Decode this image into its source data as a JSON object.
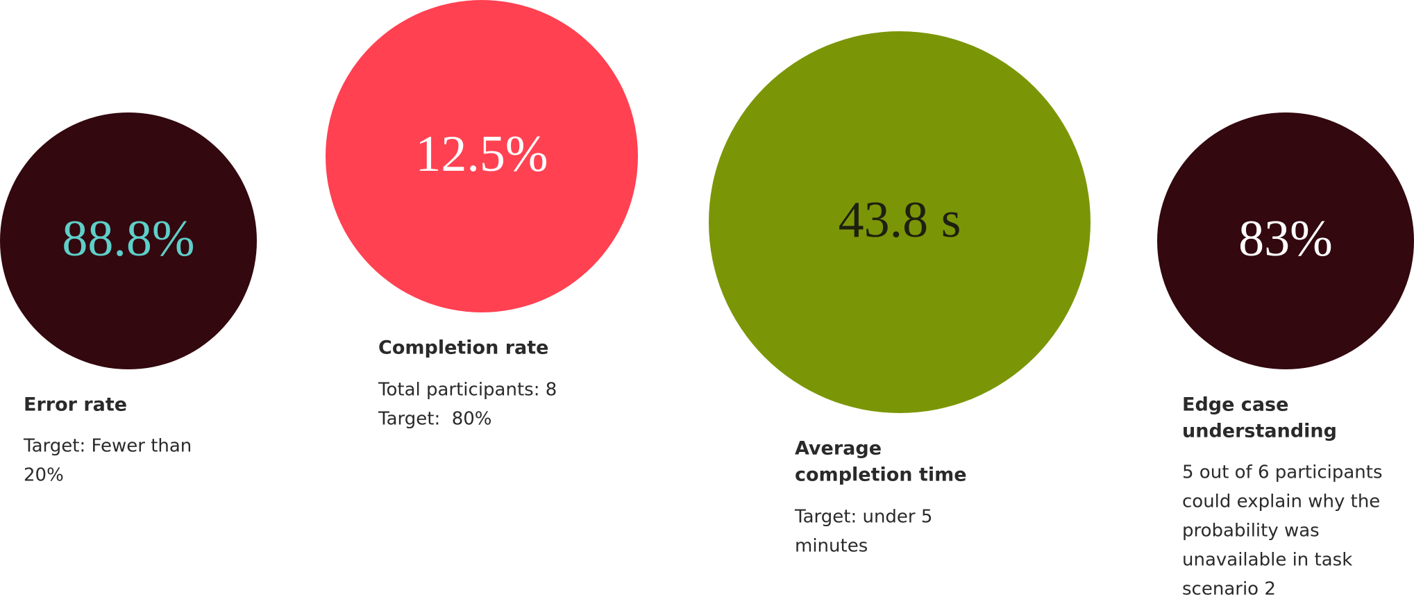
{
  "metrics": [
    {
      "value": "88.8%",
      "title": [
        "Error rate"
      ],
      "body": [
        "Target: Fewer than",
        "20%"
      ]
    },
    {
      "value": "12.5%",
      "title": [
        "Completion rate"
      ],
      "body": [
        "Total participants: 8",
        "Target:  80%"
      ]
    },
    {
      "value": "43.8 s",
      "title": [
        "Average",
        "completion time"
      ],
      "body": [
        "Target: under 5",
        "minutes"
      ]
    },
    {
      "value": "83%",
      "title": [
        "Edge case",
        "understanding"
      ],
      "body": [
        "5 out of 6 participants",
        "could explain why the",
        "probability was",
        "unavailable in task",
        "scenario 2"
      ]
    }
  ]
}
